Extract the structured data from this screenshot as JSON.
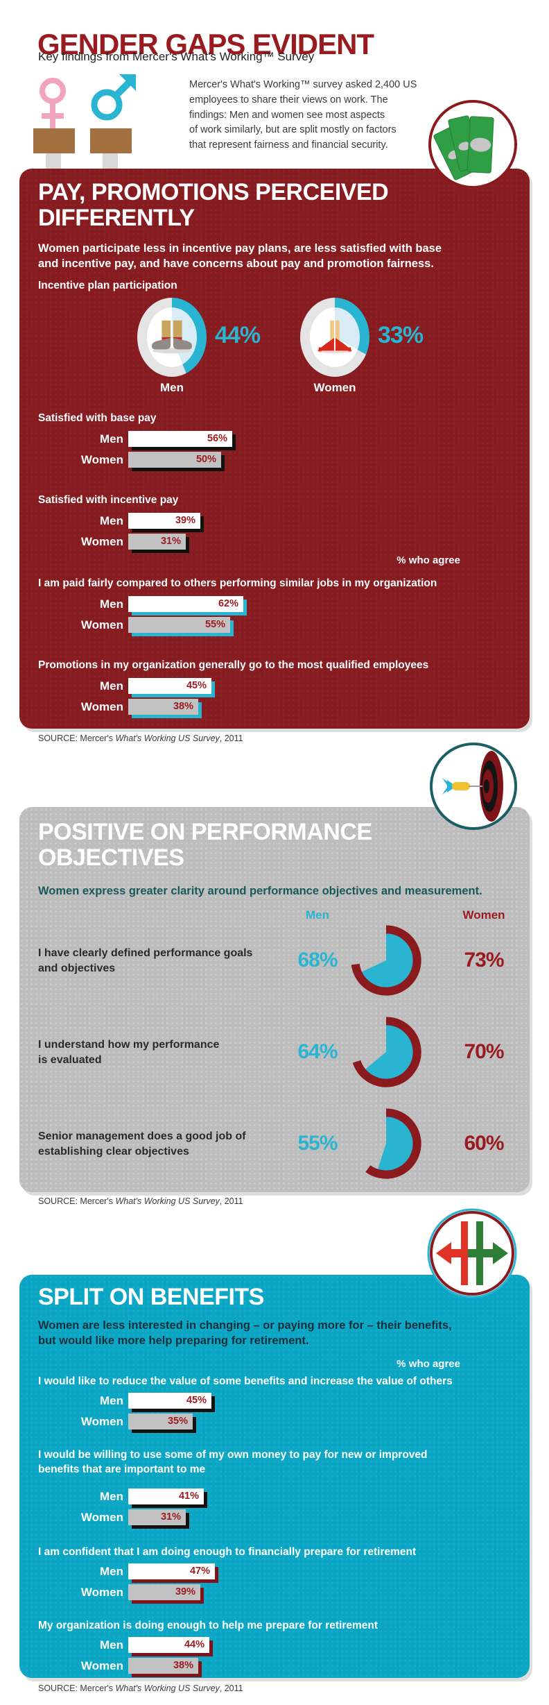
{
  "page": {
    "title": "GENDER GAPS EVIDENT",
    "subtitle": "Key findings from Mercer's What's Working™ Survey"
  },
  "intro": {
    "lines": [
      "Mercer's What's Working™ survey asked 2,400 US",
      "employees to share their views on work. The",
      "findings: Men and women see most aspects",
      "of work similarly, but are split mostly on factors",
      "that represent fairness and financial security."
    ]
  },
  "labels": {
    "men": "Men",
    "women": "Women",
    "who_agree": "% who agree"
  },
  "source": {
    "prefix": "SOURCE: Mercer's ",
    "italic": "What's Working US Survey",
    "suffix": ", 2011"
  },
  "icons": {
    "header_figures": "female-and-male-gender-symbols-on-podiums",
    "badge_pay": "money-bills",
    "badge_perf": "dart-hitting-target",
    "badge_ben": "opposing-split-arrows",
    "donut_men": "mens-shoes",
    "donut_women": "womens-high-heels"
  },
  "colors": {
    "maroon": "#9A1B1F",
    "maroon_bg": "#861B20",
    "cyan": "#29B4D2",
    "cyan_bg": "#0CA6C5",
    "gray_bg": "#BEBDBD",
    "bar_men": "#FFFFFF",
    "bar_women": "#C3C2C2",
    "teal": "#18595C",
    "navy": "#14313B",
    "green_bill": "#2F9E44",
    "pink": "#F2A3C0",
    "ring_rest": "#E4E4E4",
    "hole_wedge": "#D9ECF5",
    "shadow_black": "#131010",
    "shadow_red": "#7E1419"
  },
  "pay": {
    "heading_lines": [
      "PAY, PROMOTIONS PERCEIVED",
      "DIFFERENTLY"
    ],
    "sub_lines": [
      "Women participate less in incentive pay plans, are less satisfied with base",
      "and incentive pay, and have concerns about pay and promotion fairness."
    ],
    "donut_title": "Incentive plan participation",
    "donut_men": {
      "value": 44,
      "label": "44%"
    },
    "donut_women": {
      "value": 33,
      "label": "33%"
    },
    "groups": [
      {
        "title": "Satisfied with base pay",
        "men": 56,
        "men_label": "56%",
        "women": 50,
        "women_label": "50%"
      },
      {
        "title": "Satisfied with incentive pay",
        "men": 39,
        "men_label": "39%",
        "women": 31,
        "women_label": "31%"
      },
      {
        "title": "I am paid fairly compared to others performing similar jobs in my organization",
        "men": 62,
        "men_label": "62%",
        "women": 55,
        "women_label": "55%"
      },
      {
        "title": "Promotions in my organization generally go to the most qualified employees",
        "men": 45,
        "men_label": "45%",
        "women": 38,
        "women_label": "38%"
      }
    ]
  },
  "perf": {
    "heading_lines": [
      "POSITIVE ON PERFORMANCE",
      "OBJECTIVES"
    ],
    "sub": "Women express greater clarity around performance objectives and measurement.",
    "rows": [
      {
        "lines": [
          "I have clearly defined performance goals",
          "and objectives"
        ],
        "men": 68,
        "men_label": "68%",
        "women": 73,
        "women_label": "73%"
      },
      {
        "lines": [
          "I understand how my performance",
          "is evaluated"
        ],
        "men": 64,
        "men_label": "64%",
        "women": 70,
        "women_label": "70%"
      },
      {
        "lines": [
          "Senior management does a good job of",
          "establishing clear objectives"
        ],
        "men": 55,
        "men_label": "55%",
        "women": 60,
        "women_label": "60%"
      }
    ]
  },
  "ben": {
    "heading": "SPLIT ON BENEFITS",
    "sub_lines": [
      "Women are less interested in changing – or paying more for – their benefits,",
      "but would like more help preparing for retirement."
    ],
    "groups": [
      {
        "title_lines": [
          "I would like to reduce the value of some benefits and increase the value of others"
        ],
        "men": 45,
        "men_label": "45%",
        "women": 35,
        "women_label": "35%"
      },
      {
        "title_lines": [
          "I would be willing to use some of my own money to pay for new or improved",
          "benefits that are important to me"
        ],
        "men": 41,
        "men_label": "41%",
        "women": 31,
        "women_label": "31%"
      },
      {
        "title_lines": [
          "I am confident that I am doing enough to financially prepare for retirement"
        ],
        "men": 47,
        "men_label": "47%",
        "women": 39,
        "women_label": "39%"
      },
      {
        "title_lines": [
          "My organization is doing enough to help me prepare for retirement"
        ],
        "men": 44,
        "men_label": "44%",
        "women": 38,
        "women_label": "38%"
      }
    ]
  },
  "chart_data": [
    {
      "type": "pie",
      "title": "Incentive plan participation",
      "categories": [
        "Men",
        "Women"
      ],
      "values": [
        44,
        33
      ],
      "unit": "%"
    },
    {
      "type": "bar",
      "title": "Pay, promotions perceived differently",
      "ylabel": "% who agree",
      "categories": [
        "Satisfied with base pay",
        "Satisfied with incentive pay",
        "I am paid fairly compared to others performing similar jobs in my organization",
        "Promotions in my organization generally go to the most qualified employees"
      ],
      "series": [
        {
          "name": "Men",
          "values": [
            56,
            39,
            62,
            45
          ]
        },
        {
          "name": "Women",
          "values": [
            50,
            31,
            55,
            38
          ]
        }
      ]
    },
    {
      "type": "pie",
      "title": "Positive on performance objectives",
      "ylabel": "% who agree",
      "categories": [
        "I have clearly defined performance goals and objectives",
        "I understand how my performance is evaluated",
        "Senior management does a good job of establishing clear objectives"
      ],
      "series": [
        {
          "name": "Men",
          "values": [
            68,
            64,
            55
          ]
        },
        {
          "name": "Women",
          "values": [
            73,
            70,
            60
          ]
        }
      ]
    },
    {
      "type": "bar",
      "title": "Split on benefits",
      "ylabel": "% who agree",
      "categories": [
        "I would like to reduce the value of some benefits and increase the value of others",
        "I would be willing to use some of my own money to pay for new or improved benefits that are important to me",
        "I am confident that I am doing enough to financially prepare for retirement",
        "My organization is doing enough to help me prepare for retirement"
      ],
      "series": [
        {
          "name": "Men",
          "values": [
            45,
            41,
            47,
            44
          ]
        },
        {
          "name": "Women",
          "values": [
            35,
            31,
            39,
            38
          ]
        }
      ]
    }
  ]
}
